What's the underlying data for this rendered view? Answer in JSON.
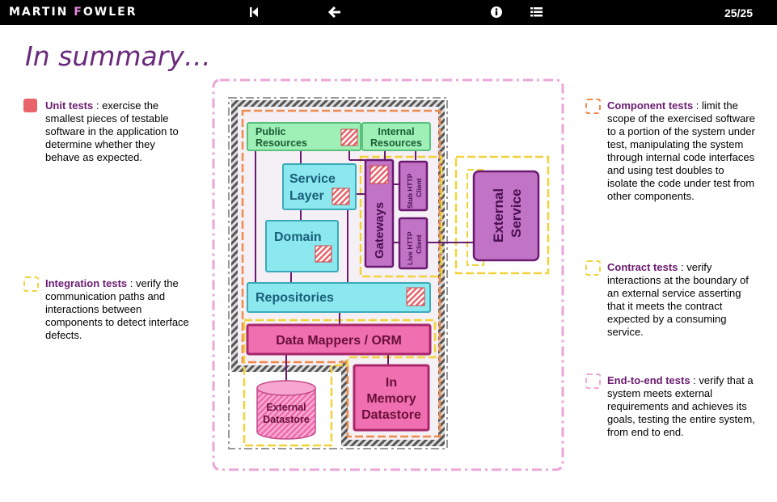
{
  "header": {
    "logo_part1": "MARTIN ",
    "logo_f": "F",
    "logo_part2": "OWLER",
    "page_counter": "25/25"
  },
  "title": "In summary…",
  "legend": {
    "unit": {
      "label": "Unit tests",
      "text": " : exercise the smallest pieces of testable software in the application to determine whether they behave as expected."
    },
    "integration": {
      "label": "Integration tests",
      "text": " : verify the communication paths and interactions between components to detect interface defects."
    },
    "component": {
      "label": "Component tests",
      "text": " : limit the scope of the exercised software to a portion of the system under test, manipulating the system through internal code interfaces and using test doubles to isolate the code under test from other components."
    },
    "contract": {
      "label": "Contract tests",
      "text": " : verify interactions at the boundary of an external service asserting that it meets the contract expected by a consuming service."
    },
    "e2e": {
      "label": "End-to-end tests",
      "text": " : verify that a system meets external requirements and achieves its goals, testing the entire system, from end to end."
    }
  },
  "diagram": {
    "public_resources": [
      "Public",
      "Resources"
    ],
    "internal_resources": [
      "Internal",
      "Resources"
    ],
    "service_layer": [
      "Service",
      "Layer"
    ],
    "domain": "Domain",
    "gateways": "Gateways",
    "stub_http_client": [
      "Stub HTTP",
      "Client"
    ],
    "live_http_client": [
      "Live HTTP",
      "Client"
    ],
    "external_service": [
      "External",
      "Service"
    ],
    "repositories": "Repositories",
    "data_mappers": "Data Mappers / ORM",
    "external_datastore": [
      "External",
      "Datastore"
    ],
    "in_memory_datastore": [
      "In",
      "Memory",
      "Datastore"
    ]
  },
  "colors": {
    "unit": "#e8636b",
    "integration": "#f2d23a",
    "component": "#f08a4b",
    "contract": "#f2d23a",
    "e2e": "#eaa6d8",
    "title": "#6a2a7c",
    "green_box": "#9ef0b6",
    "cyan_box": "#8be8ef",
    "purple_box": "#c173c6",
    "pink_box": "#ef6fb0"
  }
}
